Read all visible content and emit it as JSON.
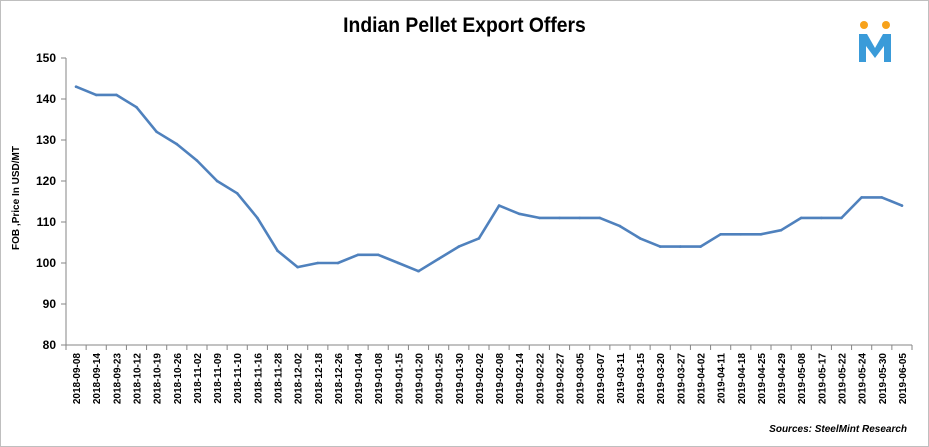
{
  "chart_data": {
    "type": "line",
    "title": "Indian Pellet Export Offers",
    "ylabel": "FOB ,Price In USD/MT",
    "xlabel": "",
    "ylim": [
      80,
      150
    ],
    "yticks": [
      80,
      90,
      100,
      110,
      120,
      130,
      140,
      150
    ],
    "grid": false,
    "legend": "none",
    "series_color": "#4f81bd",
    "categories": [
      "2018-09-08",
      "2018-09-14",
      "2018-09-23",
      "2018-10-12",
      "2018-10-19",
      "2018-10-26",
      "2018-11-02",
      "2018-11-09",
      "2018-11-10",
      "2018-11-16",
      "2018-11-28",
      "2018-12-02",
      "2018-12-18",
      "2018-12-26",
      "2019-01-04",
      "2019-01-08",
      "2019-01-15",
      "2019-01-20",
      "2019-01-25",
      "2019-01-30",
      "2019-02-02",
      "2019-02-08",
      "2019-02-14",
      "2019-02-22",
      "2019-02-27",
      "2019-03-05",
      "2019-03-07",
      "2019-03-11",
      "2019-03-15",
      "2019-03-20",
      "2019-03-27",
      "2019-04-02",
      "2019-04-11",
      "2019-04-18",
      "2019-04-25",
      "2019-04-29",
      "2019-05-08",
      "2019-05-17",
      "2019-05-22",
      "2019-05-24",
      "2019-05-30",
      "2019-06-05"
    ],
    "series": [
      {
        "values": [
          143,
          141,
          141,
          138,
          132,
          129,
          125,
          120,
          117,
          111,
          103,
          99,
          100,
          100,
          102,
          102,
          100,
          98,
          101,
          104,
          106,
          114,
          112,
          111,
          111,
          111,
          111,
          109,
          106,
          104,
          104,
          104,
          107,
          107,
          107,
          108,
          111,
          111,
          111,
          116,
          116,
          114
        ]
      }
    ],
    "source": "Sources: SteelMint Research"
  },
  "logo": {
    "letter": "M",
    "colors": [
      "#f7a21b",
      "#3a9bd9"
    ]
  }
}
